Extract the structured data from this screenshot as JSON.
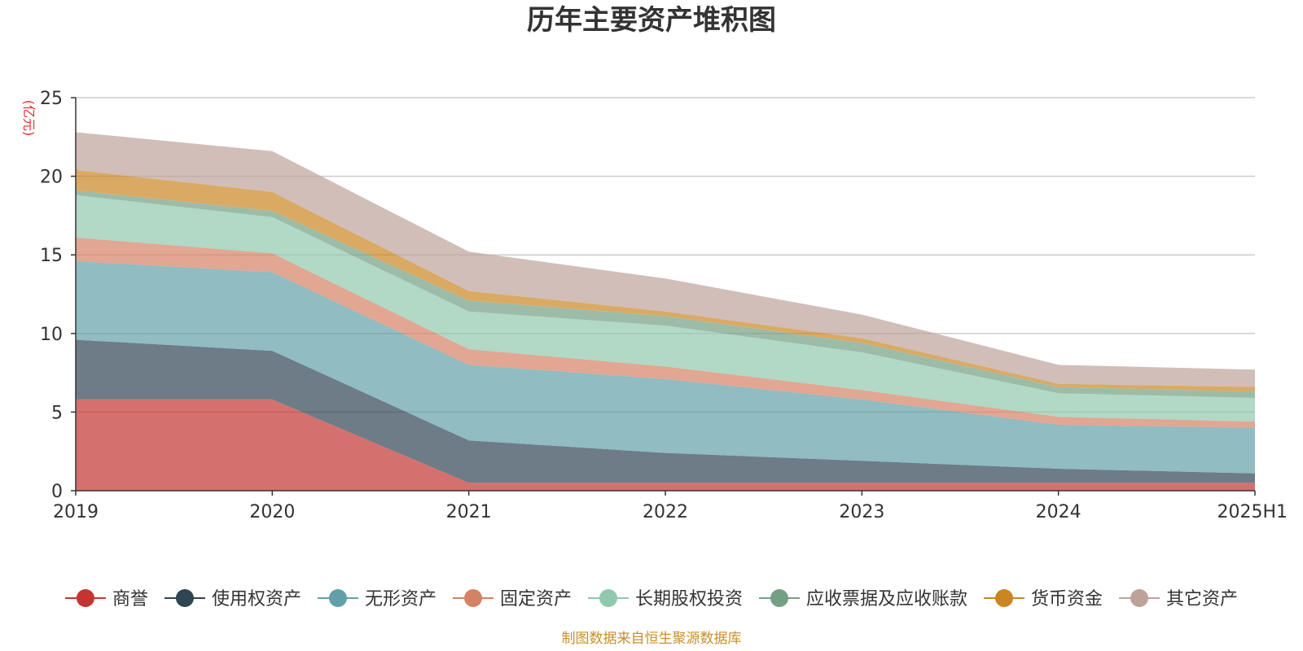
{
  "chart_data": {
    "type": "area",
    "stacked": true,
    "title": "历年主要资产堆积图",
    "ylabel": "(亿元)",
    "xlabel": "",
    "ylim": [
      0,
      25
    ],
    "yticks": [
      0,
      5,
      10,
      15,
      20,
      25
    ],
    "categories": [
      "2019",
      "2020",
      "2021",
      "2022",
      "2023",
      "2024",
      "2025H1"
    ],
    "series": [
      {
        "name": "商誉",
        "color": "#c23531",
        "values": [
          5.8,
          5.8,
          0.5,
          0.5,
          0.5,
          0.5,
          0.5
        ]
      },
      {
        "name": "使用权资产",
        "color": "#2f4554",
        "values": [
          3.8,
          3.1,
          2.7,
          1.9,
          1.4,
          0.9,
          0.6
        ]
      },
      {
        "name": "无形资产",
        "color": "#61a0a8",
        "values": [
          5.0,
          5.0,
          4.8,
          4.7,
          3.9,
          2.8,
          2.9
        ]
      },
      {
        "name": "固定资产",
        "color": "#d48265",
        "values": [
          1.5,
          1.2,
          1.0,
          0.8,
          0.6,
          0.5,
          0.4
        ]
      },
      {
        "name": "长期股权投资",
        "color": "#91c7ae",
        "values": [
          2.7,
          2.3,
          2.4,
          2.6,
          2.4,
          1.5,
          1.5
        ]
      },
      {
        "name": "应收票据及应收账款",
        "color": "#749f83",
        "values": [
          0.3,
          0.4,
          0.7,
          0.6,
          0.6,
          0.4,
          0.4
        ]
      },
      {
        "name": "货币资金",
        "color": "#ca8622",
        "values": [
          1.3,
          1.2,
          0.6,
          0.3,
          0.3,
          0.2,
          0.3
        ]
      },
      {
        "name": "其它资产",
        "color": "#bda29a",
        "values": [
          2.4,
          2.6,
          2.5,
          2.1,
          1.5,
          1.2,
          1.1
        ]
      }
    ],
    "legend_position": "bottom",
    "grid": true,
    "source_note": "制图数据来自恒生聚源数据库"
  }
}
